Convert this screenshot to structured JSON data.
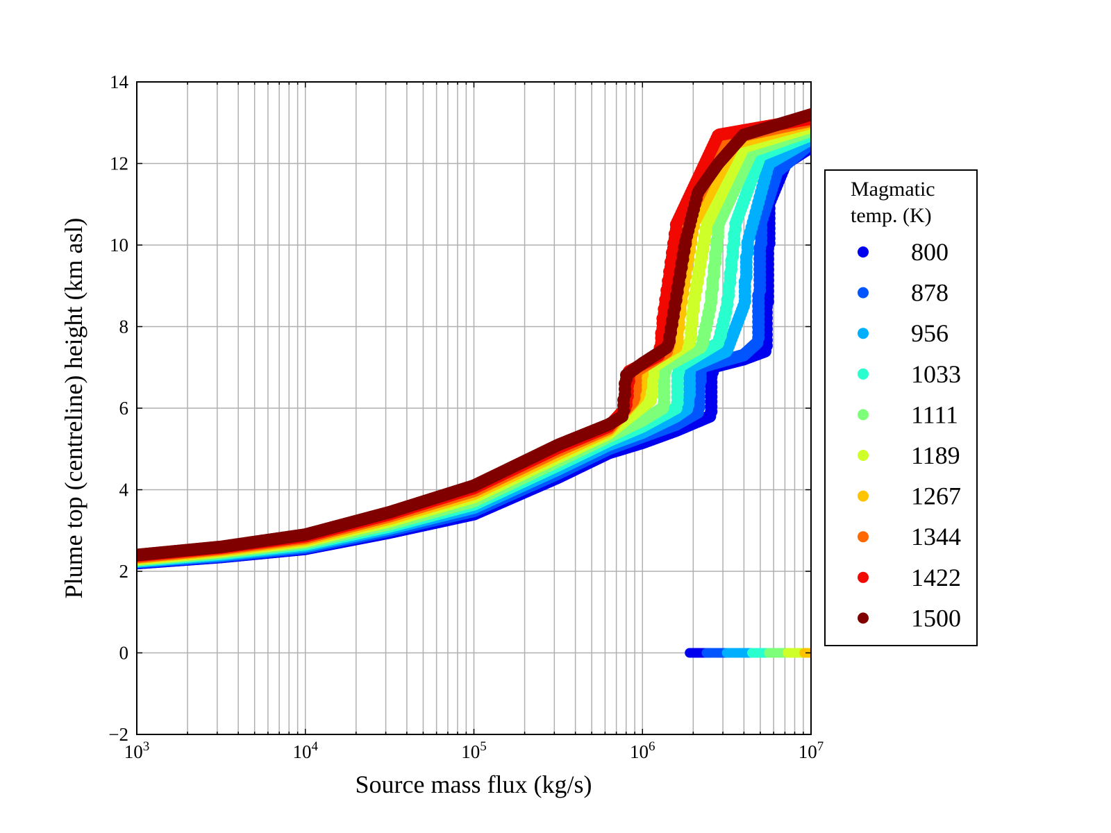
{
  "chart_data": {
    "type": "scatter",
    "xlabel": "Source mass flux (kg/s)",
    "ylabel": "Plume top (centreline) height (km asl)",
    "xscale": "log",
    "xlim_log10": [
      3,
      7
    ],
    "ylim": [
      -2,
      14
    ],
    "grid": true,
    "xticks": [
      {
        "base": "10",
        "exp": "3",
        "log": 3
      },
      {
        "base": "10",
        "exp": "4",
        "log": 4
      },
      {
        "base": "10",
        "exp": "5",
        "log": 5
      },
      {
        "base": "10",
        "exp": "6",
        "log": 6
      },
      {
        "base": "10",
        "exp": "7",
        "log": 7
      }
    ],
    "yticks": [
      {
        "label": "−2",
        "v": -2
      },
      {
        "label": "0",
        "v": 0
      },
      {
        "label": "2",
        "v": 2
      },
      {
        "label": "4",
        "v": 4
      },
      {
        "label": "6",
        "v": 6
      },
      {
        "label": "8",
        "v": 8
      },
      {
        "label": "10",
        "v": 10
      },
      {
        "label": "12",
        "v": 12
      },
      {
        "label": "14",
        "v": 14
      }
    ],
    "legend": {
      "title_line1": "Magmatic",
      "title_line2": "temp. (K)",
      "placement": "outside-right"
    },
    "series": [
      {
        "name": "800",
        "color": "#0000ee",
        "points": [
          [
            3,
            2.2
          ],
          [
            3.5,
            2.35
          ],
          [
            4,
            2.55
          ],
          [
            4.5,
            2.95
          ],
          [
            5,
            3.4
          ],
          [
            5.5,
            4.3
          ],
          [
            5.8,
            4.9
          ],
          [
            6,
            5.15
          ],
          [
            6.2,
            5.45
          ],
          [
            6.4,
            5.8
          ],
          [
            6.41,
            7.0
          ],
          [
            6.6,
            7.2
          ],
          [
            6.73,
            7.4
          ],
          [
            6.75,
            11.0
          ],
          [
            6.85,
            12.0
          ],
          [
            7,
            12.4
          ]
        ],
        "zero_range": [
          6.28,
          6.38
        ]
      },
      {
        "name": "878",
        "color": "#0055ff",
        "points": [
          [
            3,
            2.22
          ],
          [
            3.5,
            2.37
          ],
          [
            4,
            2.58
          ],
          [
            4.5,
            3.0
          ],
          [
            5,
            3.48
          ],
          [
            5.5,
            4.4
          ],
          [
            5.8,
            5.0
          ],
          [
            6,
            5.3
          ],
          [
            6.2,
            5.6
          ],
          [
            6.33,
            5.9
          ],
          [
            6.34,
            7.0
          ],
          [
            6.6,
            7.3
          ],
          [
            6.68,
            7.6
          ],
          [
            6.7,
            10.5
          ],
          [
            6.8,
            11.8
          ],
          [
            7,
            12.5
          ]
        ],
        "zero_range": [
          6.38,
          6.5
        ]
      },
      {
        "name": "956",
        "color": "#00b0ff",
        "points": [
          [
            3,
            2.24
          ],
          [
            3.5,
            2.4
          ],
          [
            4,
            2.62
          ],
          [
            4.5,
            3.05
          ],
          [
            5,
            3.56
          ],
          [
            5.5,
            4.5
          ],
          [
            5.8,
            5.1
          ],
          [
            6,
            5.4
          ],
          [
            6.2,
            5.8
          ],
          [
            6.27,
            6.0
          ],
          [
            6.28,
            7.0
          ],
          [
            6.5,
            7.4
          ],
          [
            6.6,
            8.5
          ],
          [
            6.62,
            10
          ],
          [
            6.75,
            12
          ],
          [
            7,
            12.6
          ]
        ],
        "zero_range": [
          6.5,
          6.65
        ]
      },
      {
        "name": "1033",
        "color": "#29ffce",
        "points": [
          [
            3,
            2.26
          ],
          [
            3.5,
            2.43
          ],
          [
            4,
            2.66
          ],
          [
            4.5,
            3.1
          ],
          [
            5,
            3.64
          ],
          [
            5.5,
            4.6
          ],
          [
            5.8,
            5.2
          ],
          [
            6,
            5.55
          ],
          [
            6.2,
            6.0
          ],
          [
            6.21,
            7.0
          ],
          [
            6.45,
            7.6
          ],
          [
            6.5,
            8.5
          ],
          [
            6.55,
            10.5
          ],
          [
            6.7,
            12.2
          ],
          [
            7,
            12.7
          ]
        ],
        "zero_range": [
          6.65,
          6.75
        ]
      },
      {
        "name": "1111",
        "color": "#7dff7a",
        "points": [
          [
            3,
            2.28
          ],
          [
            3.5,
            2.46
          ],
          [
            4,
            2.7
          ],
          [
            4.5,
            3.16
          ],
          [
            5,
            3.72
          ],
          [
            5.5,
            4.7
          ],
          [
            5.8,
            5.3
          ],
          [
            6,
            5.7
          ],
          [
            6.12,
            6.0
          ],
          [
            6.13,
            7.0
          ],
          [
            6.35,
            7.5
          ],
          [
            6.4,
            8.5
          ],
          [
            6.45,
            10.5
          ],
          [
            6.65,
            12.3
          ],
          [
            7,
            12.8
          ]
        ],
        "zero_range": [
          6.75,
          6.86
        ]
      },
      {
        "name": "1189",
        "color": "#ceff29",
        "points": [
          [
            3,
            2.3
          ],
          [
            3.5,
            2.49
          ],
          [
            4,
            2.74
          ],
          [
            4.5,
            3.23
          ],
          [
            5,
            3.82
          ],
          [
            5.5,
            4.8
          ],
          [
            5.8,
            5.38
          ],
          [
            6.05,
            6.2
          ],
          [
            6.06,
            7.0
          ],
          [
            6.28,
            7.6
          ],
          [
            6.3,
            8.5
          ],
          [
            6.38,
            10.5
          ],
          [
            6.6,
            12.4
          ],
          [
            7,
            12.9
          ]
        ],
        "zero_range": [
          6.86,
          6.96
        ]
      },
      {
        "name": "1267",
        "color": "#ffc400",
        "points": [
          [
            3,
            2.33
          ],
          [
            3.5,
            2.52
          ],
          [
            4,
            2.78
          ],
          [
            4.5,
            3.29
          ],
          [
            5,
            3.9
          ],
          [
            5.5,
            4.88
          ],
          [
            5.8,
            5.45
          ],
          [
            5.98,
            6.3
          ],
          [
            6.0,
            7.0
          ],
          [
            6.2,
            7.5
          ],
          [
            6.22,
            8.4
          ],
          [
            6.3,
            10.5
          ],
          [
            6.55,
            12.5
          ],
          [
            7,
            13.0
          ]
        ],
        "zero_range": [
          6.96,
          7.0
        ]
      },
      {
        "name": "1344",
        "color": "#ff6800",
        "points": [
          [
            3,
            2.35
          ],
          [
            3.5,
            2.55
          ],
          [
            4,
            2.82
          ],
          [
            4.5,
            3.35
          ],
          [
            5,
            3.97
          ],
          [
            5.5,
            4.96
          ],
          [
            5.8,
            5.5
          ],
          [
            5.95,
            6.2
          ],
          [
            5.96,
            6.9
          ],
          [
            6.15,
            7.4
          ],
          [
            6.17,
            8.3
          ],
          [
            6.25,
            10.5
          ],
          [
            6.5,
            12.6
          ],
          [
            7,
            13.05
          ]
        ]
      },
      {
        "name": "1422",
        "color": "#f10800",
        "points": [
          [
            3,
            2.38
          ],
          [
            3.5,
            2.58
          ],
          [
            4,
            2.86
          ],
          [
            4.5,
            3.4
          ],
          [
            5,
            4.04
          ],
          [
            5.5,
            5.03
          ],
          [
            5.8,
            5.55
          ],
          [
            5.9,
            6.0
          ],
          [
            5.92,
            6.9
          ],
          [
            6.1,
            7.3
          ],
          [
            6.12,
            8.2
          ],
          [
            6.2,
            10.5
          ],
          [
            6.45,
            12.7
          ],
          [
            7,
            13.1
          ]
        ]
      },
      {
        "name": "1500",
        "color": "#800000",
        "points": [
          [
            3,
            2.4
          ],
          [
            3.5,
            2.6
          ],
          [
            4,
            2.9
          ],
          [
            4.5,
            3.45
          ],
          [
            5,
            4.1
          ],
          [
            5.5,
            5.1
          ],
          [
            5.8,
            5.6
          ],
          [
            5.88,
            5.8
          ],
          [
            5.9,
            6.8
          ],
          [
            6,
            7.1
          ],
          [
            6.15,
            7.5
          ],
          [
            6.17,
            8.0
          ],
          [
            6.25,
            10
          ],
          [
            6.33,
            11.3
          ],
          [
            6.45,
            12
          ],
          [
            6.6,
            12.7
          ],
          [
            7,
            13.2
          ]
        ]
      }
    ]
  }
}
